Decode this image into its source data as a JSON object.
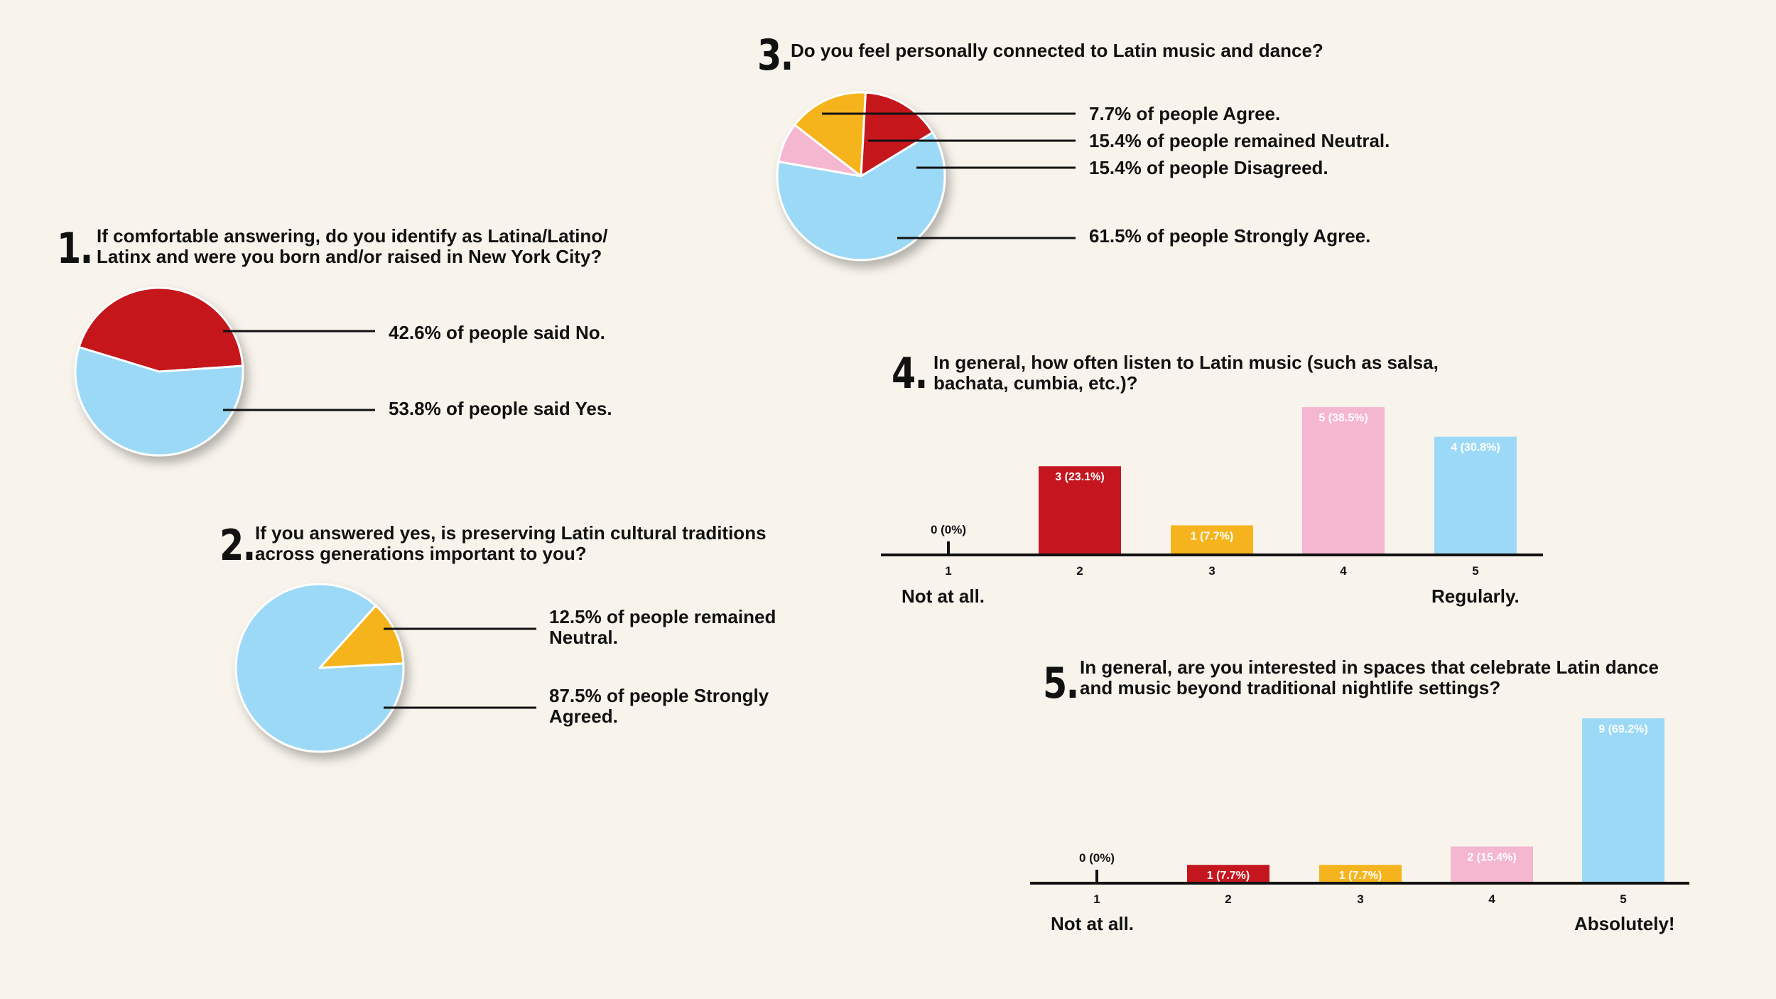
{
  "colors": {
    "red": "#c5161f",
    "blue": "#9cd9f6",
    "yellow": "#f5b41d",
    "pink": "#f5b6cf",
    "background": "#f8f4ec",
    "ink": "#111111"
  },
  "chart_data": [
    {
      "type": "pie",
      "number": "1.",
      "question": "If comfortable answering, do you identify as Latina/Latino/\nLatinx and were you born and/or raised in New York City?",
      "slices": [
        {
          "name": "No",
          "value": 42.6,
          "color": "#c5161f",
          "label": "42.6% of people said No."
        },
        {
          "name": "Yes",
          "value": 53.8,
          "color": "#9cd9f6",
          "label": "53.8% of people said Yes."
        }
      ]
    },
    {
      "type": "pie",
      "number": "2.",
      "question": "If you answered yes, is preserving Latin cultural traditions\nacross generations important to you?",
      "slices": [
        {
          "name": "Neutral",
          "value": 12.5,
          "color": "#f5b41d",
          "label": "12.5% of people remained\nNeutral."
        },
        {
          "name": "Strongly Agreed",
          "value": 87.5,
          "color": "#9cd9f6",
          "label": "87.5% of people Strongly\nAgreed."
        }
      ]
    },
    {
      "type": "pie",
      "number": "3.",
      "question": "Do you feel personally connected to Latin music and dance?",
      "slices": [
        {
          "name": "Agree",
          "value": 7.7,
          "color": "#f5b6cf",
          "label": "7.7% of people Agree."
        },
        {
          "name": "Neutral",
          "value": 15.4,
          "color": "#f5b41d",
          "label": "15.4% of people remained Neutral."
        },
        {
          "name": "Disagreed",
          "value": 15.4,
          "color": "#c5161f",
          "label": "15.4% of people Disagreed."
        },
        {
          "name": "Strongly Agree",
          "value": 61.5,
          "color": "#9cd9f6",
          "label": "61.5% of people Strongly Agree."
        }
      ]
    },
    {
      "type": "bar",
      "number": "4.",
      "question": "In general, how often listen to Latin music (such as salsa,\nbachata, cumbia, etc.)?",
      "categories": [
        "1",
        "2",
        "3",
        "4",
        "5"
      ],
      "values": [
        0,
        3,
        1,
        5,
        4
      ],
      "value_labels": [
        "0 (0%)",
        "3 (23.1%)",
        "1 (7.7%)",
        "5 (38.5%)",
        "4 (30.8%)"
      ],
      "colors": [
        "#111111",
        "#c5161f",
        "#f5b41d",
        "#f5b6cf",
        "#9cd9f6"
      ],
      "ylim": [
        0,
        5
      ],
      "low_label": "Not at all.",
      "high_label": "Regularly."
    },
    {
      "type": "bar",
      "number": "5.",
      "question": "In general, are you interested in spaces that celebrate Latin dance\nand music beyond traditional nightlife settings?",
      "categories": [
        "1",
        "2",
        "3",
        "4",
        "5"
      ],
      "values": [
        0,
        1,
        1,
        2,
        9
      ],
      "value_labels": [
        "0 (0%)",
        "1 (7.7%)",
        "1 (7.7%)",
        "2 (15.4%)",
        "9 (69.2%)"
      ],
      "colors": [
        "#111111",
        "#c5161f",
        "#f5b41d",
        "#f5b6cf",
        "#9cd9f6"
      ],
      "ylim": [
        0,
        9
      ],
      "low_label": "Not at all.",
      "high_label": "Absolutely!"
    }
  ]
}
